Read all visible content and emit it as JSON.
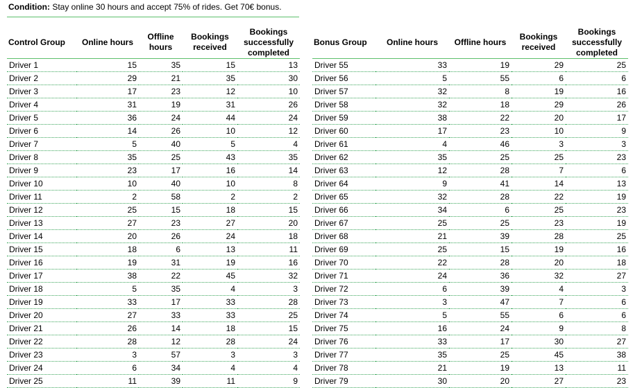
{
  "condition": {
    "label": "Condition:",
    "text": " Stay online 30 hours and accept 75% of rides. Get 70€ bonus."
  },
  "accent_color": "#5bbf6a",
  "tables": [
    {
      "headers": [
        "Control Group",
        "Online hours",
        "Offline hours",
        "Bookings received",
        "Bookings successfully completed"
      ],
      "rows": [
        [
          "Driver 1",
          "15",
          "35",
          "15",
          "13"
        ],
        [
          "Driver 2",
          "29",
          "21",
          "35",
          "30"
        ],
        [
          "Driver 3",
          "17",
          "23",
          "12",
          "10"
        ],
        [
          "Driver 4",
          "31",
          "19",
          "31",
          "26"
        ],
        [
          "Driver 5",
          "36",
          "24",
          "44",
          "24"
        ],
        [
          "Driver 6",
          "14",
          "26",
          "10",
          "12"
        ],
        [
          "Driver 7",
          "5",
          "40",
          "5",
          "4"
        ],
        [
          "Driver 8",
          "35",
          "25",
          "43",
          "35"
        ],
        [
          "Driver 9",
          "23",
          "17",
          "16",
          "14"
        ],
        [
          "Driver 10",
          "10",
          "40",
          "10",
          "8"
        ],
        [
          "Driver 11",
          "2",
          "58",
          "2",
          "2"
        ],
        [
          "Driver 12",
          "25",
          "15",
          "18",
          "15"
        ],
        [
          "Driver 13",
          "27",
          "23",
          "27",
          "20"
        ],
        [
          "Driver 14",
          "20",
          "26",
          "24",
          "18"
        ],
        [
          "Driver 15",
          "18",
          "6",
          "13",
          "11"
        ],
        [
          "Driver 16",
          "19",
          "31",
          "19",
          "16"
        ],
        [
          "Driver 17",
          "38",
          "22",
          "45",
          "32"
        ],
        [
          "Driver 18",
          "5",
          "35",
          "4",
          "3"
        ],
        [
          "Driver 19",
          "33",
          "17",
          "33",
          "28"
        ],
        [
          "Driver 20",
          "27",
          "33",
          "33",
          "25"
        ],
        [
          "Driver 21",
          "26",
          "14",
          "18",
          "15"
        ],
        [
          "Driver 22",
          "28",
          "12",
          "28",
          "24"
        ],
        [
          "Driver 23",
          "3",
          "57",
          "3",
          "3"
        ],
        [
          "Driver 24",
          "6",
          "34",
          "4",
          "4"
        ],
        [
          "Driver 25",
          "11",
          "39",
          "11",
          "9"
        ]
      ]
    },
    {
      "headers": [
        "Bonus Group",
        "Online hours",
        "Offline hours",
        "Bookings received",
        "Bookings successfully completed"
      ],
      "rows": [
        [
          "Driver 55",
          "33",
          "19",
          "29",
          "25"
        ],
        [
          "Driver 56",
          "5",
          "55",
          "6",
          "6"
        ],
        [
          "Driver 57",
          "32",
          "8",
          "19",
          "16"
        ],
        [
          "Driver 58",
          "32",
          "18",
          "29",
          "26"
        ],
        [
          "Driver 59",
          "38",
          "22",
          "20",
          "17"
        ],
        [
          "Driver 60",
          "17",
          "23",
          "10",
          "9"
        ],
        [
          "Driver 61",
          "4",
          "46",
          "3",
          "3"
        ],
        [
          "Driver 62",
          "35",
          "25",
          "25",
          "23"
        ],
        [
          "Driver 63",
          "12",
          "28",
          "7",
          "6"
        ],
        [
          "Driver 64",
          "9",
          "41",
          "14",
          "13"
        ],
        [
          "Driver 65",
          "32",
          "28",
          "22",
          "19"
        ],
        [
          "Driver 66",
          "34",
          "6",
          "25",
          "23"
        ],
        [
          "Driver 67",
          "25",
          "25",
          "23",
          "19"
        ],
        [
          "Driver 68",
          "21",
          "39",
          "28",
          "25"
        ],
        [
          "Driver 69",
          "25",
          "15",
          "19",
          "16"
        ],
        [
          "Driver 70",
          "22",
          "28",
          "20",
          "18"
        ],
        [
          "Driver 71",
          "24",
          "36",
          "32",
          "27"
        ],
        [
          "Driver 72",
          "6",
          "39",
          "4",
          "3"
        ],
        [
          "Driver 73",
          "3",
          "47",
          "7",
          "6"
        ],
        [
          "Driver 74",
          "5",
          "55",
          "6",
          "6"
        ],
        [
          "Driver 75",
          "16",
          "24",
          "9",
          "8"
        ],
        [
          "Driver 76",
          "33",
          "17",
          "30",
          "27"
        ],
        [
          "Driver 77",
          "35",
          "25",
          "45",
          "38"
        ],
        [
          "Driver 78",
          "21",
          "19",
          "13",
          "11"
        ],
        [
          "Driver 79",
          "30",
          "20",
          "27",
          "23"
        ]
      ]
    }
  ]
}
